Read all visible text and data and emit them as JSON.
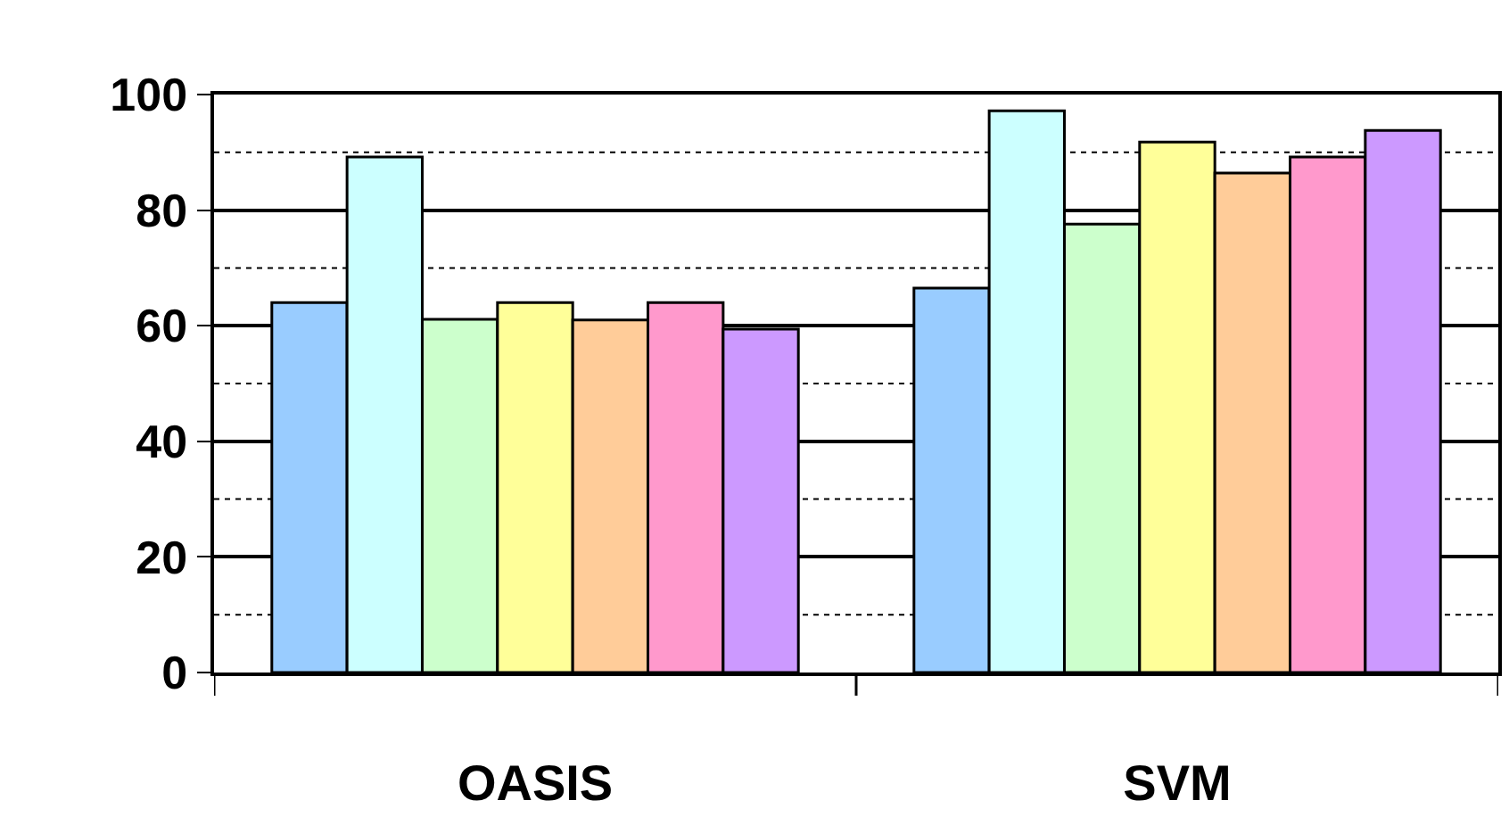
{
  "chart_data": {
    "type": "bar",
    "categories": [
      "OASIS",
      "SVM"
    ],
    "series": [
      {
        "color": "#99ccff",
        "values": [
          64,
          66.5
        ]
      },
      {
        "color": "#ccffff",
        "values": [
          89.2,
          97.2
        ]
      },
      {
        "color": "#ccffcc",
        "values": [
          61.1,
          77.6
        ]
      },
      {
        "color": "#ffff99",
        "values": [
          64,
          91.8
        ]
      },
      {
        "color": "#ffcc99",
        "values": [
          61,
          86.4
        ]
      },
      {
        "color": "#ff99cc",
        "values": [
          64,
          89.2
        ]
      },
      {
        "color": "#cc99ff",
        "values": [
          59.4,
          93.8
        ]
      }
    ],
    "ylim": [
      0,
      100
    ],
    "yticks": [
      0,
      {
        "value": 10,
        "label": null
      },
      20,
      {
        "value": 30,
        "label": null
      },
      40,
      {
        "value": 50,
        "label": null
      },
      60,
      {
        "value": 70,
        "label": null
      },
      80,
      {
        "value": 90,
        "label": null
      },
      100
    ],
    "grid": "y"
  }
}
